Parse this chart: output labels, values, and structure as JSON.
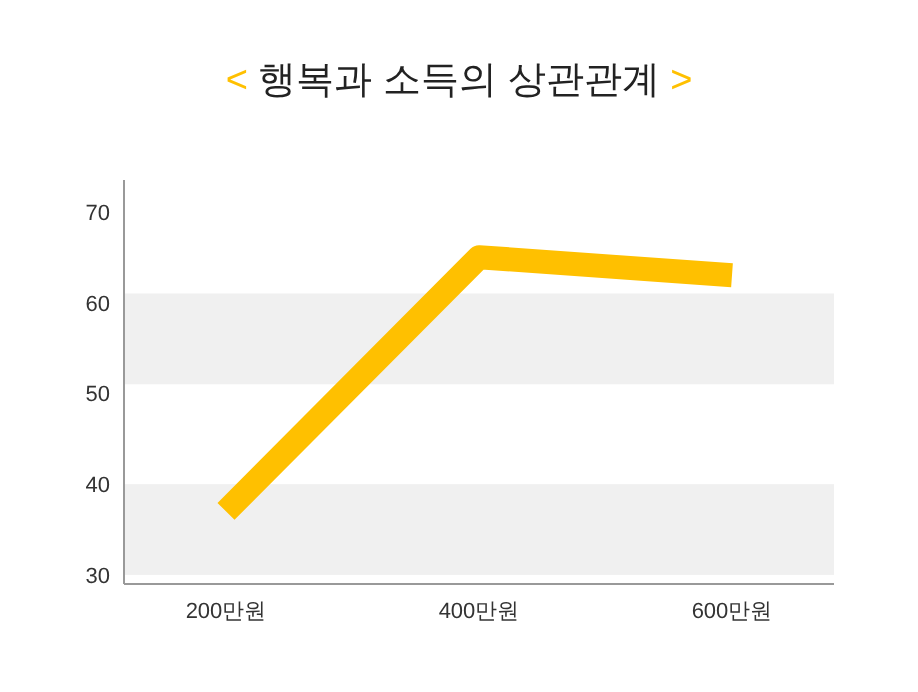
{
  "chart_data": {
    "type": "line",
    "title": "< 행복과 소득의 상관관계 >",
    "categories": [
      "200만원",
      "400만원",
      "600만원"
    ],
    "series": [
      {
        "color": "#ffc000",
        "values": [
          37,
          65,
          63
        ]
      }
    ],
    "ylim": [
      29,
      73.5
    ],
    "yticks": [
      30,
      40,
      50,
      60,
      70
    ],
    "grid": false,
    "marker": "none",
    "line_style": "solid",
    "bands": [
      {
        "axis": "y",
        "from": 30,
        "to": 40,
        "color": "#f0f0f0"
      },
      {
        "axis": "y",
        "from": 51,
        "to": 61,
        "color": "#f0f0f0"
      }
    ]
  }
}
